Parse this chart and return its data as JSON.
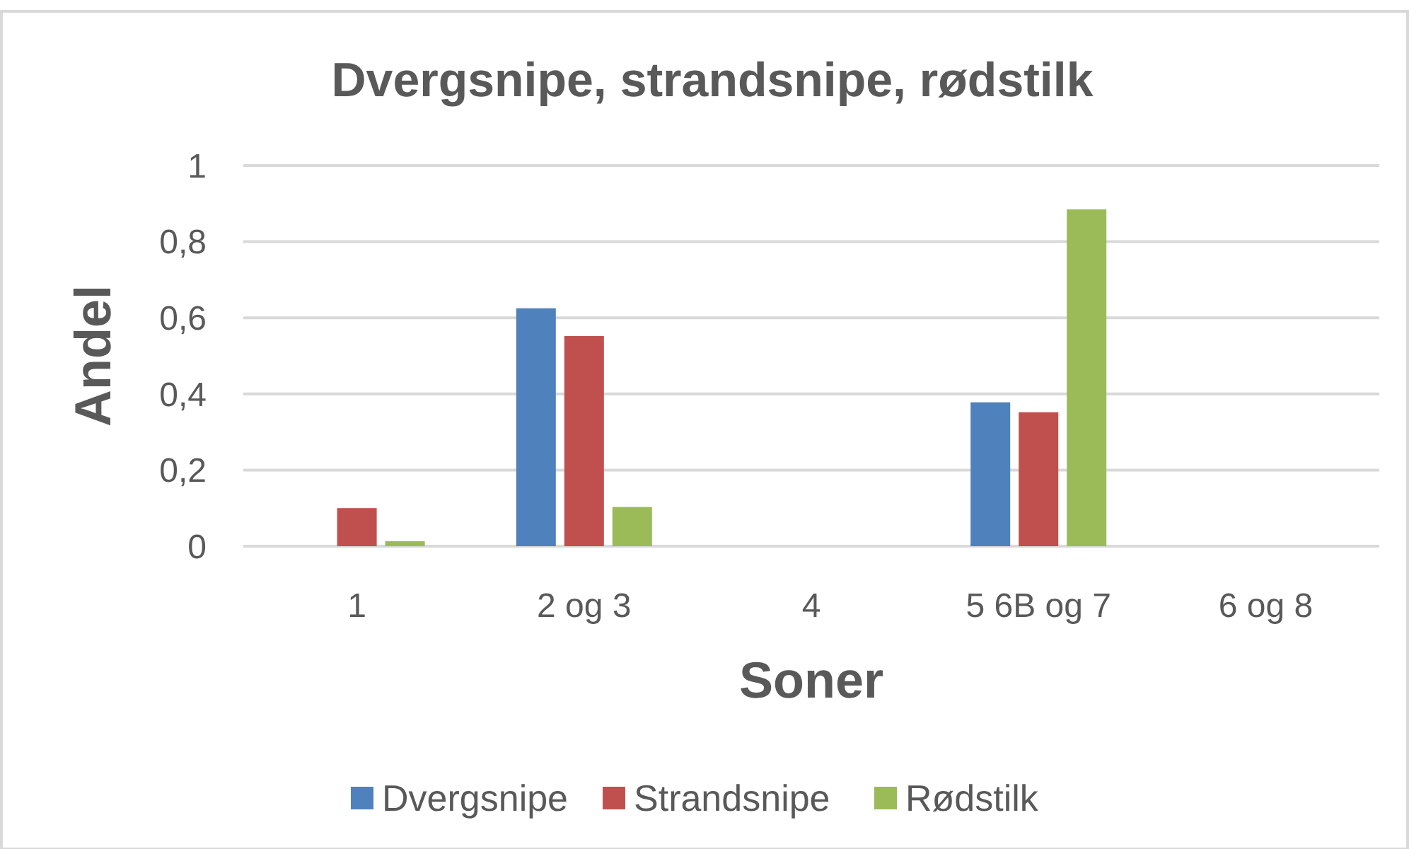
{
  "chart_data": {
    "type": "bar",
    "title": "Dvergsnipe, strandsnipe, rødstilk",
    "xlabel": "Soner",
    "ylabel": "Andel",
    "categories": [
      "1",
      "2 og 3",
      "4",
      "5 6B og 7",
      "6 og 8"
    ],
    "series": [
      {
        "name": "Dvergsnipe",
        "color": "#4f81bd",
        "values": [
          0,
          0.625,
          0,
          0.378,
          0
        ]
      },
      {
        "name": "Strandsnipe",
        "color": "#c0504d",
        "values": [
          0.1,
          0.552,
          0,
          0.352,
          0
        ]
      },
      {
        "name": "Rødstilk",
        "color": "#9bbb59",
        "values": [
          0.013,
          0.103,
          0,
          0.885,
          0
        ]
      }
    ],
    "ylim": [
      0,
      1
    ],
    "yticks": [
      {
        "value": 0,
        "label": "0"
      },
      {
        "value": 0.2,
        "label": "0,2"
      },
      {
        "value": 0.4,
        "label": "0,4"
      },
      {
        "value": 0.6,
        "label": "0,6"
      },
      {
        "value": 0.8,
        "label": "0,8"
      },
      {
        "value": 1,
        "label": "1"
      }
    ],
    "grid": "y",
    "legend": "bottom"
  }
}
